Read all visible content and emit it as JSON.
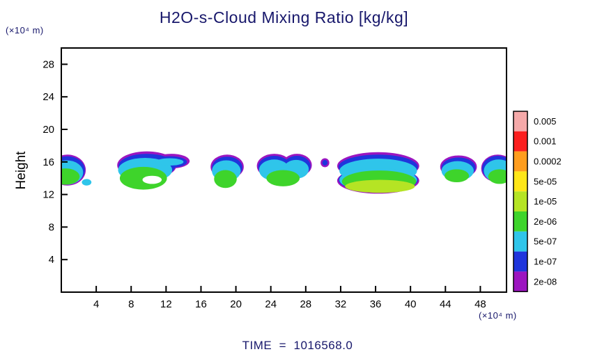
{
  "title": "H2O-s-Cloud Mixing Ratio [kg/kg]",
  "ylabel": "Height",
  "y_axis_unit": "(×10⁴ m)",
  "x_axis_unit": "(×10⁴ m)",
  "time_label": "TIME  =  1016568.0",
  "chart_data": {
    "type": "heatmap",
    "title": "H2O-s-Cloud Mixing Ratio [kg/kg]",
    "xlabel": "(×10⁴ m)",
    "ylabel": "Height (×10⁴ m)",
    "xlim": [
      0,
      51
    ],
    "ylim": [
      0,
      30
    ],
    "x_ticks": [
      4,
      8,
      12,
      16,
      20,
      24,
      28,
      32,
      36,
      40,
      44,
      48
    ],
    "y_ticks": [
      4,
      8,
      12,
      16,
      20,
      24,
      28
    ],
    "grid": false,
    "legend": {
      "position": "right",
      "labels": [
        "0.005",
        "0.001",
        "0.0002",
        "5e-05",
        "1e-05",
        "2e-06",
        "5e-07",
        "1e-07",
        "2e-08"
      ],
      "band_colors": [
        "#f5a9a9",
        "#fb1f1f",
        "#ff9d1e",
        "#ffe619",
        "#b5e424",
        "#3ed42b",
        "#2fc5ea",
        "#1f35dc",
        "#9c15c0"
      ]
    },
    "clouds": [
      {
        "name": "cloud-left-edge",
        "layers": [
          {
            "color": 8,
            "ellipses": [
              [
                0.7,
                15.0,
                2.1,
                1.9
              ]
            ]
          },
          {
            "color": 7,
            "ellipses": [
              [
                0.7,
                15.0,
                2.0,
                1.7
              ]
            ]
          },
          {
            "color": 6,
            "ellipses": [
              [
                0.6,
                14.7,
                1.9,
                1.5
              ]
            ]
          },
          {
            "color": 5,
            "ellipses": [
              [
                0.5,
                14.2,
                1.6,
                1.0
              ]
            ]
          }
        ]
      },
      {
        "name": "cloud-dot-1",
        "layers": [
          {
            "color": 6,
            "ellipses": [
              [
                2.9,
                13.5,
                0.55,
                0.4
              ]
            ]
          }
        ]
      },
      {
        "name": "cloud-2",
        "layers": [
          {
            "color": 8,
            "ellipses": [
              [
                9.8,
                15.6,
                3.4,
                1.7
              ],
              [
                12.6,
                16.1,
                2.1,
                0.9
              ]
            ]
          },
          {
            "color": 7,
            "ellipses": [
              [
                9.8,
                15.5,
                3.25,
                1.5
              ],
              [
                12.5,
                16.0,
                1.9,
                0.7
              ]
            ]
          },
          {
            "color": 6,
            "ellipses": [
              [
                9.6,
                15.0,
                3.1,
                1.5
              ],
              [
                12.4,
                16.0,
                1.6,
                0.45
              ]
            ]
          },
          {
            "color": 5,
            "ellipses": [
              [
                9.4,
                14.0,
                2.7,
                1.4
              ]
            ]
          },
          {
            "color": "white",
            "ellipses": [
              [
                10.4,
                13.8,
                1.1,
                0.5
              ]
            ]
          }
        ]
      },
      {
        "name": "cloud-3",
        "layers": [
          {
            "color": 8,
            "ellipses": [
              [
                19.0,
                15.4,
                1.9,
                1.5
              ]
            ]
          },
          {
            "color": 7,
            "ellipses": [
              [
                19.0,
                15.3,
                1.75,
                1.35
              ]
            ]
          },
          {
            "color": 6,
            "ellipses": [
              [
                18.9,
                14.9,
                1.65,
                1.3
              ]
            ]
          },
          {
            "color": 5,
            "ellipses": [
              [
                18.8,
                13.9,
                1.3,
                1.1
              ]
            ]
          }
        ]
      },
      {
        "name": "cloud-4",
        "layers": [
          {
            "color": 8,
            "ellipses": [
              [
                24.4,
                15.5,
                2.0,
                1.5
              ],
              [
                27.0,
                15.6,
                1.7,
                1.4
              ]
            ]
          },
          {
            "color": 7,
            "ellipses": [
              [
                24.4,
                15.4,
                1.85,
                1.35
              ],
              [
                27.0,
                15.5,
                1.55,
                1.25
              ]
            ]
          },
          {
            "color": 6,
            "ellipses": [
              [
                24.4,
                15.0,
                1.75,
                1.3
              ],
              [
                26.9,
                15.1,
                1.45,
                1.15
              ]
            ]
          },
          {
            "color": 5,
            "ellipses": [
              [
                25.4,
                14.0,
                1.9,
                1.0
              ]
            ]
          }
        ]
      },
      {
        "name": "cloud-dot-2",
        "layers": [
          {
            "color": 8,
            "ellipses": [
              [
                30.2,
                15.9,
                0.5,
                0.55
              ]
            ]
          },
          {
            "color": 7,
            "ellipses": [
              [
                30.2,
                15.9,
                0.3,
                0.35
              ]
            ]
          }
        ]
      },
      {
        "name": "cloud-big",
        "layers": [
          {
            "color": 8,
            "ellipses": [
              [
                36.3,
                15.5,
                4.7,
                1.7
              ],
              [
                36.3,
                13.7,
                4.7,
                1.6
              ]
            ]
          },
          {
            "color": 7,
            "ellipses": [
              [
                36.3,
                15.4,
                4.55,
                1.5
              ],
              [
                36.3,
                13.8,
                4.55,
                1.5
              ]
            ]
          },
          {
            "color": 6,
            "ellipses": [
              [
                36.3,
                14.9,
                4.45,
                1.5
              ],
              [
                36.3,
                13.8,
                4.45,
                1.45
              ]
            ]
          },
          {
            "color": 5,
            "ellipses": [
              [
                36.4,
                13.6,
                4.25,
                1.35
              ]
            ]
          },
          {
            "color": 4,
            "ellipses": [
              [
                36.5,
                13.0,
                4.0,
                0.8
              ]
            ]
          }
        ]
      },
      {
        "name": "cloud-7",
        "layers": [
          {
            "color": 8,
            "ellipses": [
              [
                45.5,
                15.4,
                2.1,
                1.4
              ]
            ]
          },
          {
            "color": 7,
            "ellipses": [
              [
                45.5,
                15.3,
                1.95,
                1.25
              ]
            ]
          },
          {
            "color": 6,
            "ellipses": [
              [
                45.4,
                14.9,
                1.85,
                1.2
              ]
            ]
          },
          {
            "color": 5,
            "ellipses": [
              [
                45.3,
                14.3,
                1.4,
                0.8
              ]
            ]
          }
        ]
      },
      {
        "name": "cloud-right-edge",
        "layers": [
          {
            "color": 8,
            "ellipses": [
              [
                50.0,
                15.2,
                1.9,
                1.7
              ]
            ]
          },
          {
            "color": 7,
            "ellipses": [
              [
                50.0,
                15.2,
                1.8,
                1.55
              ]
            ]
          },
          {
            "color": 6,
            "ellipses": [
              [
                50.1,
                14.9,
                1.7,
                1.4
              ]
            ]
          },
          {
            "color": 5,
            "ellipses": [
              [
                50.2,
                14.2,
                1.3,
                0.9
              ]
            ]
          }
        ]
      }
    ]
  }
}
